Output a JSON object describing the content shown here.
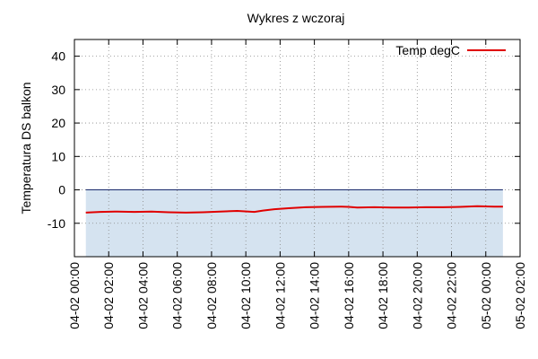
{
  "chart_data": {
    "type": "line",
    "title": "Wykres z wczoraj",
    "ylabel": "Temperatura DS balkon",
    "xlabel": "",
    "legend_position": "top-right",
    "grid": true,
    "ylim": [
      -20,
      45
    ],
    "yticks": [
      -10,
      0,
      10,
      20,
      30,
      40
    ],
    "x_range": [
      "04-02 00:00",
      "05-02 02:00"
    ],
    "xticks": [
      "04-02 00:00",
      "04-02 02:00",
      "04-02 04:00",
      "04-02 06:00",
      "04-02 08:00",
      "04-02 10:00",
      "04-02 12:00",
      "04-02 14:00",
      "04-02 16:00",
      "04-02 18:00",
      "04-02 20:00",
      "04-02 22:00",
      "05-02 00:00",
      "05-02 02:00"
    ],
    "series": [
      {
        "name": "Temp degC",
        "color": "#e00000",
        "fill_color": "#d5e3f0",
        "fill_baseline": 0,
        "x": [
          "04-02 00:40",
          "04-02 01:30",
          "04-02 02:30",
          "04-02 03:30",
          "04-02 04:30",
          "04-02 05:30",
          "04-02 06:30",
          "04-02 07:30",
          "04-02 08:30",
          "04-02 09:30",
          "04-02 10:30",
          "04-02 11:00",
          "04-02 11:40",
          "04-02 12:30",
          "04-02 13:30",
          "04-02 14:30",
          "04-02 15:30",
          "04-02 16:00",
          "04-02 16:30",
          "04-02 17:30",
          "04-02 18:30",
          "04-02 19:30",
          "04-02 20:30",
          "04-02 21:30",
          "04-02 22:30",
          "04-02 23:30",
          "05-02 00:30",
          "05-02 01:00"
        ],
        "values": [
          -6.8,
          -6.6,
          -6.5,
          -6.6,
          -6.5,
          -6.7,
          -6.8,
          -6.7,
          -6.5,
          -6.3,
          -6.6,
          -6.2,
          -5.8,
          -5.5,
          -5.2,
          -5.1,
          -5.0,
          -5.1,
          -5.3,
          -5.2,
          -5.3,
          -5.3,
          -5.2,
          -5.2,
          -5.1,
          -4.9,
          -5.0,
          -5.0
        ]
      }
    ]
  }
}
